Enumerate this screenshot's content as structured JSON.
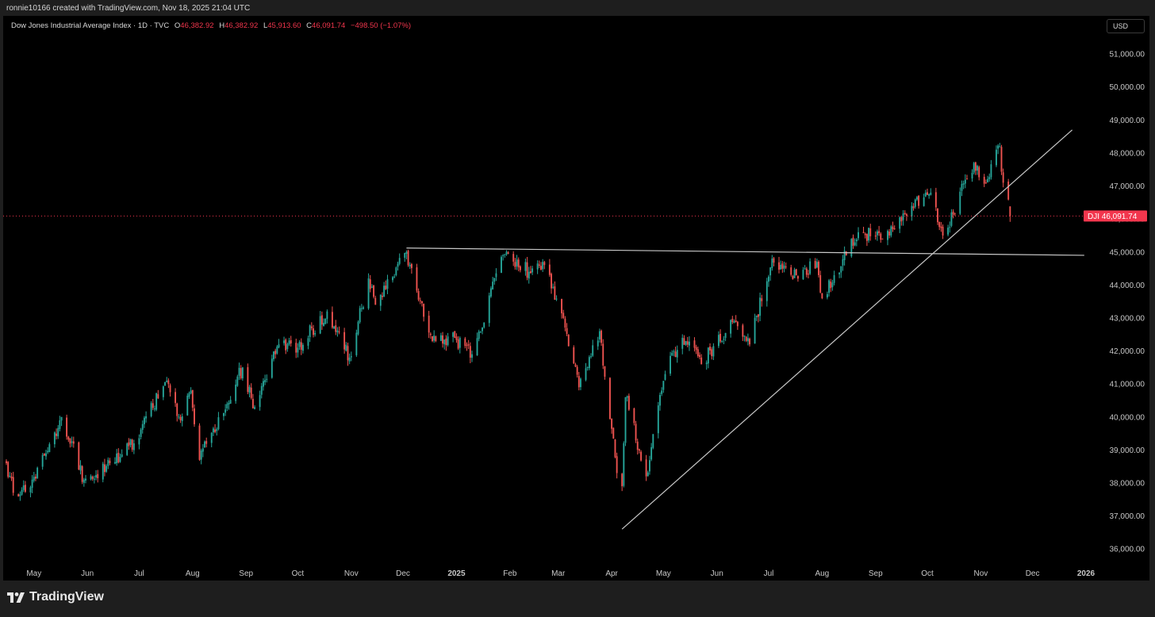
{
  "attribution": "ronnie10166 created with TradingView.com, Nov 18, 2025 21:04 UTC",
  "header": {
    "title": "Dow Jones Industrial Average Index · 1D · TVC",
    "open_label": "O",
    "open_value": "46,382.92",
    "high_label": "H",
    "high_value": "46,382.92",
    "low_label": "L",
    "low_value": "45,913.60",
    "close_label": "C",
    "close_value": "46,091.74",
    "change_value": "−498.50 (−1.07%)"
  },
  "currency_button": "USD",
  "price_badge": {
    "symbol": "DJI",
    "value": "46,091.74"
  },
  "footer": {
    "brand": "TradingView",
    "logo_icon": "tradingview-logo-icon"
  },
  "colors": {
    "up": "#26a69a",
    "down": "#ef5350",
    "background": "#000000",
    "axis_text": "#c8c8c8",
    "price_line": "#f2364d",
    "trendline": "#c8c8c8"
  },
  "chart_data": {
    "type": "candlestick",
    "symbol": "DJI",
    "x_ticks": [
      "May",
      "Jun",
      "Jul",
      "Aug",
      "Sep",
      "Oct",
      "Nov",
      "Dec",
      "2025",
      "Feb",
      "Mar",
      "Apr",
      "May",
      "Jun",
      "Jul",
      "Aug",
      "Sep",
      "Oct",
      "Nov",
      "Dec",
      "2026"
    ],
    "x_tick_dates": [
      "2024-05-01",
      "2024-06-01",
      "2024-07-01",
      "2024-08-01",
      "2024-09-01",
      "2024-10-01",
      "2024-11-01",
      "2024-12-01",
      "2025-01-01",
      "2025-02-01",
      "2025-03-01",
      "2025-04-01",
      "2025-05-01",
      "2025-06-01",
      "2025-07-01",
      "2025-08-01",
      "2025-09-01",
      "2025-10-01",
      "2025-11-01",
      "2025-12-01",
      "2026-01-01"
    ],
    "y_ticks": [
      "36,000.00",
      "37,000.00",
      "38,000.00",
      "39,000.00",
      "40,000.00",
      "41,000.00",
      "42,000.00",
      "43,000.00",
      "44,000.00",
      "45,000.00",
      "46,000.00",
      "47,000.00",
      "48,000.00",
      "49,000.00",
      "50,000.00",
      "51,000.00"
    ],
    "ylim": [
      35600,
      51600
    ],
    "last_price": 46091.74,
    "trend_lines": [
      {
        "name": "resistance",
        "start": [
          "2024-12-03",
          45120
        ],
        "end": [
          "2025-12-31",
          44900
        ]
      },
      {
        "name": "support",
        "start": [
          "2025-04-07",
          36600
        ],
        "end": [
          "2025-12-24",
          48700
        ]
      }
    ],
    "anchors": [
      [
        "2024-04-15",
        38600
      ],
      [
        "2024-04-19",
        37700
      ],
      [
        "2024-04-30",
        38100
      ],
      [
        "2024-05-08",
        38900
      ],
      [
        "2024-05-17",
        40000
      ],
      [
        "2024-05-30",
        38100
      ],
      [
        "2024-06-14",
        38600
      ],
      [
        "2024-06-28",
        39200
      ],
      [
        "2024-07-17",
        41100
      ],
      [
        "2024-07-25",
        39900
      ],
      [
        "2024-07-31",
        40800
      ],
      [
        "2024-08-05",
        38700
      ],
      [
        "2024-08-30",
        41500
      ],
      [
        "2024-09-06",
        40300
      ],
      [
        "2024-09-20",
        42200
      ],
      [
        "2024-10-01",
        42100
      ],
      [
        "2024-10-18",
        43200
      ],
      [
        "2024-10-31",
        41800
      ],
      [
        "2024-11-11",
        44200
      ],
      [
        "2024-11-15",
        43400
      ],
      [
        "2024-12-03",
        45000
      ],
      [
        "2024-12-18",
        42300
      ],
      [
        "2024-12-31",
        42400
      ],
      [
        "2025-01-10",
        41900
      ],
      [
        "2025-01-28",
        44900
      ],
      [
        "2025-02-12",
        44400
      ],
      [
        "2025-02-20",
        44700
      ],
      [
        "2025-03-04",
        43000
      ],
      [
        "2025-03-13",
        40900
      ],
      [
        "2025-03-25",
        42600
      ],
      [
        "2025-04-04",
        38300
      ],
      [
        "2025-04-07",
        37900
      ],
      [
        "2025-04-09",
        40600
      ],
      [
        "2025-04-21",
        38200
      ],
      [
        "2025-05-02",
        41300
      ],
      [
        "2025-05-12",
        42400
      ],
      [
        "2025-05-23",
        41600
      ],
      [
        "2025-06-11",
        42900
      ],
      [
        "2025-06-20",
        42200
      ],
      [
        "2025-07-03",
        44800
      ],
      [
        "2025-07-17",
        44300
      ],
      [
        "2025-07-29",
        44700
      ],
      [
        "2025-08-01",
        43600
      ],
      [
        "2025-08-15",
        44900
      ],
      [
        "2025-08-22",
        45600
      ],
      [
        "2025-09-05",
        45400
      ],
      [
        "2025-09-22",
        46400
      ],
      [
        "2025-10-03",
        46800
      ],
      [
        "2025-10-10",
        45500
      ],
      [
        "2025-10-24",
        47200
      ],
      [
        "2025-10-28",
        47700
      ],
      [
        "2025-11-04",
        47100
      ],
      [
        "2025-11-12",
        48200
      ],
      [
        "2025-11-14",
        47100
      ],
      [
        "2025-11-17",
        46590
      ],
      [
        "2025-11-18",
        46092
      ]
    ]
  }
}
